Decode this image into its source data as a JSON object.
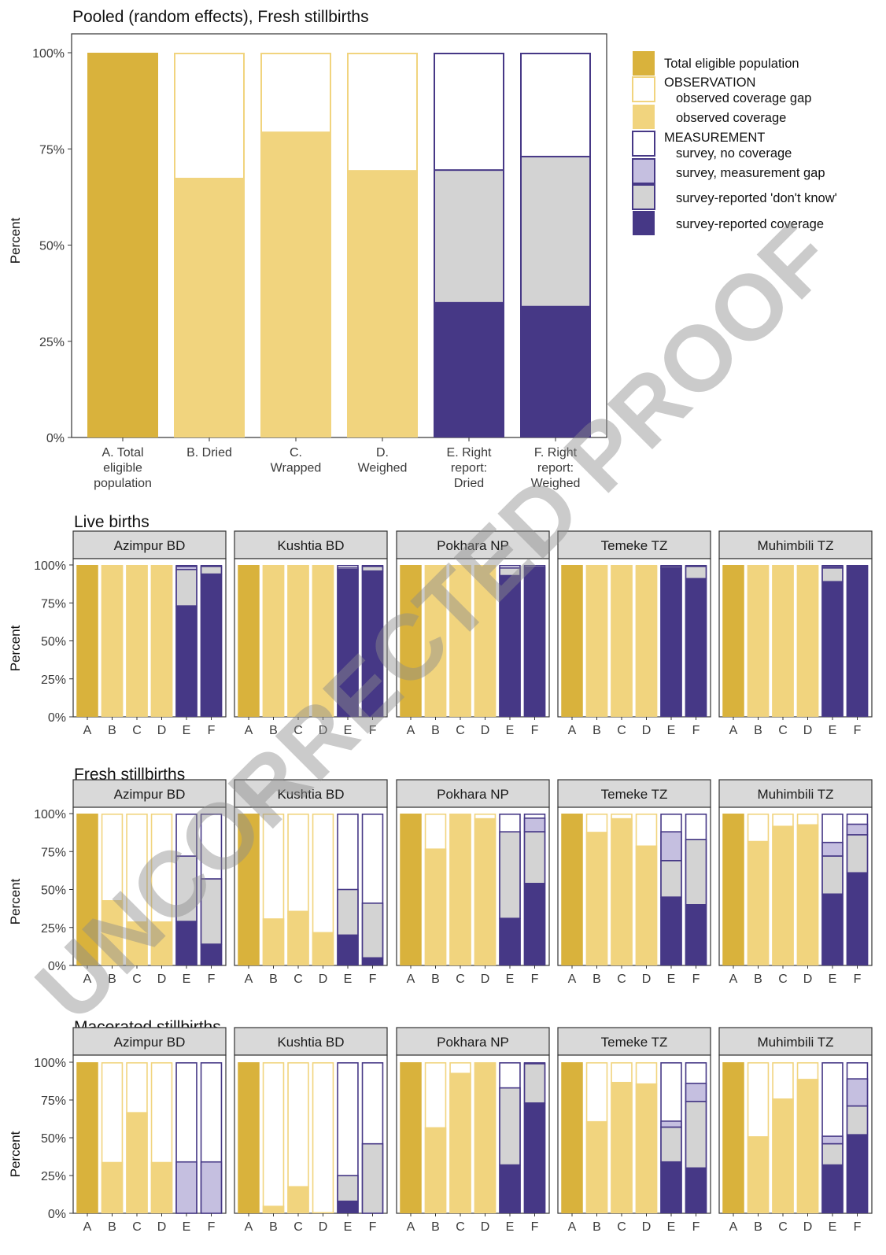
{
  "colors": {
    "total": "#d9b23c",
    "obs_cov": "#f1d47e",
    "obs_gap_stroke": "#f1d47e",
    "meas_cov": "#463886",
    "dont_know": "#d3d3d3",
    "meas_gap": "#c5bfe0",
    "meas_stroke": "#463886",
    "strip_bg": "#d9d9d9"
  },
  "watermark": "UNCORRECTED PROOF",
  "chart_data": [
    {
      "type": "bar",
      "stacked": true,
      "title": "Pooled (random effects), Fresh stillbirths",
      "ylabel": "Percent",
      "ylim": [
        0,
        100
      ],
      "yticks": [
        "0%",
        "25%",
        "50%",
        "75%",
        "100%"
      ],
      "categories": [
        "A. Total eligible population",
        "B. Dried",
        "C. Wrapped",
        "D. Weighed",
        "E. Right report: Dried",
        "F. Right report: Weighed"
      ],
      "category_lines": [
        [
          "A. Total",
          "eligible",
          "population"
        ],
        [
          "B. Dried"
        ],
        [
          "C.",
          "Wrapped"
        ],
        [
          "D.",
          "Weighed"
        ],
        [
          "E. Right",
          "report:",
          "Dried"
        ],
        [
          "F. Right",
          "report:",
          "Weighed"
        ]
      ],
      "bars": [
        {
          "kind": "total",
          "value": 100
        },
        {
          "kind": "obs",
          "coverage": 67.5
        },
        {
          "kind": "obs",
          "coverage": 79.5
        },
        {
          "kind": "obs",
          "coverage": 69.5
        },
        {
          "kind": "meas",
          "coverage": 35,
          "dont_know": 34.5,
          "gap": 0
        },
        {
          "kind": "meas",
          "coverage": 34,
          "dont_know": 39,
          "gap": 0
        }
      ],
      "legend": {
        "position": "right",
        "items": [
          {
            "type": "swatch",
            "fill": "total",
            "label": "Total eligible population"
          },
          {
            "type": "header",
            "label": "OBSERVATION"
          },
          {
            "type": "swatch",
            "fill": "obs_gap",
            "label": "observed coverage gap"
          },
          {
            "type": "swatch",
            "fill": "obs_cov",
            "label": "observed coverage"
          },
          {
            "type": "header",
            "label": "MEASUREMENT"
          },
          {
            "type": "swatch",
            "fill": "meas_nocov",
            "label": "survey, no coverage"
          },
          {
            "type": "swatch",
            "fill": "meas_gap",
            "label": "survey, measurement gap"
          },
          {
            "type": "swatch",
            "fill": "dont_know",
            "label": "survey-reported 'don't know'"
          },
          {
            "type": "swatch",
            "fill": "meas_cov",
            "label": "survey-reported coverage"
          }
        ]
      }
    },
    {
      "type": "bar",
      "stacked": true,
      "title": "Live births",
      "ylabel": "Percent",
      "ylim": [
        0,
        100
      ],
      "yticks": [
        "0%",
        "25%",
        "50%",
        "75%",
        "100%"
      ],
      "categories": [
        "A",
        "B",
        "C",
        "D",
        "E",
        "F"
      ],
      "facets": [
        {
          "site": "Azimpur BD",
          "bars": [
            {
              "kind": "total",
              "value": 100
            },
            {
              "kind": "obs",
              "coverage": 100
            },
            {
              "kind": "obs",
              "coverage": 100
            },
            {
              "kind": "obs",
              "coverage": 100
            },
            {
              "kind": "meas",
              "coverage": 73,
              "dont_know": 24,
              "gap": 2
            },
            {
              "kind": "meas",
              "coverage": 94,
              "dont_know": 5,
              "gap": 0
            }
          ]
        },
        {
          "site": "Kushtia BD",
          "bars": [
            {
              "kind": "total",
              "value": 100
            },
            {
              "kind": "obs",
              "coverage": 100
            },
            {
              "kind": "obs",
              "coverage": 100
            },
            {
              "kind": "obs",
              "coverage": 100
            },
            {
              "kind": "meas",
              "coverage": 97,
              "dont_know": 1,
              "gap": 0
            },
            {
              "kind": "meas",
              "coverage": 96,
              "dont_know": 3,
              "gap": 0
            }
          ]
        },
        {
          "site": "Pokhara NP",
          "bars": [
            {
              "kind": "total",
              "value": 100
            },
            {
              "kind": "obs",
              "coverage": 100
            },
            {
              "kind": "obs",
              "coverage": 100
            },
            {
              "kind": "obs",
              "coverage": 100
            },
            {
              "kind": "meas",
              "coverage": 93,
              "dont_know": 5,
              "gap": 0
            },
            {
              "kind": "meas",
              "coverage": 99,
              "dont_know": 0,
              "gap": 0
            }
          ]
        },
        {
          "site": "Temeke TZ",
          "bars": [
            {
              "kind": "total",
              "value": 100
            },
            {
              "kind": "obs",
              "coverage": 100
            },
            {
              "kind": "obs",
              "coverage": 100
            },
            {
              "kind": "obs",
              "coverage": 99.5
            },
            {
              "kind": "meas",
              "coverage": 98,
              "dont_know": 1,
              "gap": 0
            },
            {
              "kind": "meas",
              "coverage": 91,
              "dont_know": 8,
              "gap": 0
            }
          ]
        },
        {
          "site": "Muhimbili TZ",
          "bars": [
            {
              "kind": "total",
              "value": 100
            },
            {
              "kind": "obs",
              "coverage": 100
            },
            {
              "kind": "obs",
              "coverage": 100
            },
            {
              "kind": "obs",
              "coverage": 100
            },
            {
              "kind": "meas",
              "coverage": 89,
              "dont_know": 9,
              "gap": 1
            },
            {
              "kind": "meas",
              "coverage": 99,
              "dont_know": 0.5,
              "gap": 0
            }
          ]
        }
      ]
    },
    {
      "type": "bar",
      "stacked": true,
      "title": "Fresh stillbirths",
      "ylabel": "Percent",
      "ylim": [
        0,
        100
      ],
      "yticks": [
        "0%",
        "25%",
        "50%",
        "75%",
        "100%"
      ],
      "categories": [
        "A",
        "B",
        "C",
        "D",
        "E",
        "F"
      ],
      "facets": [
        {
          "site": "Azimpur BD",
          "bars": [
            {
              "kind": "total",
              "value": 100
            },
            {
              "kind": "obs",
              "coverage": 43
            },
            {
              "kind": "obs",
              "coverage": 29
            },
            {
              "kind": "obs",
              "coverage": 29
            },
            {
              "kind": "meas",
              "coverage": 29,
              "dont_know": 43,
              "gap": 0
            },
            {
              "kind": "meas",
              "coverage": 14,
              "dont_know": 43,
              "gap": 0
            }
          ]
        },
        {
          "site": "Kushtia BD",
          "bars": [
            {
              "kind": "total",
              "value": 100
            },
            {
              "kind": "obs",
              "coverage": 31
            },
            {
              "kind": "obs",
              "coverage": 36
            },
            {
              "kind": "obs",
              "coverage": 22
            },
            {
              "kind": "meas",
              "coverage": 20,
              "dont_know": 30,
              "gap": 0
            },
            {
              "kind": "meas",
              "coverage": 5,
              "dont_know": 36,
              "gap": 0
            }
          ]
        },
        {
          "site": "Pokhara NP",
          "bars": [
            {
              "kind": "total",
              "value": 100
            },
            {
              "kind": "obs",
              "coverage": 77
            },
            {
              "kind": "obs",
              "coverage": 100
            },
            {
              "kind": "obs",
              "coverage": 97
            },
            {
              "kind": "meas",
              "coverage": 31,
              "dont_know": 57,
              "gap": 0
            },
            {
              "kind": "meas",
              "coverage": 54,
              "dont_know": 34,
              "gap": 9
            }
          ]
        },
        {
          "site": "Temeke TZ",
          "bars": [
            {
              "kind": "total",
              "value": 100
            },
            {
              "kind": "obs",
              "coverage": 88
            },
            {
              "kind": "obs",
              "coverage": 97
            },
            {
              "kind": "obs",
              "coverage": 79
            },
            {
              "kind": "meas",
              "coverage": 45,
              "dont_know": 24,
              "gap": 19
            },
            {
              "kind": "meas",
              "coverage": 40,
              "dont_know": 43,
              "gap": 0
            }
          ]
        },
        {
          "site": "Muhimbili TZ",
          "bars": [
            {
              "kind": "total",
              "value": 100
            },
            {
              "kind": "obs",
              "coverage": 82
            },
            {
              "kind": "obs",
              "coverage": 92
            },
            {
              "kind": "obs",
              "coverage": 93
            },
            {
              "kind": "meas",
              "coverage": 47,
              "dont_know": 25,
              "gap": 9
            },
            {
              "kind": "meas",
              "coverage": 61,
              "dont_know": 25,
              "gap": 7
            }
          ]
        }
      ]
    },
    {
      "type": "bar",
      "stacked": true,
      "title": "Macerated stillbirths",
      "ylabel": "Percent",
      "ylim": [
        0,
        100
      ],
      "yticks": [
        "0%",
        "25%",
        "50%",
        "75%",
        "100%"
      ],
      "categories": [
        "A",
        "B",
        "C",
        "D",
        "E",
        "F"
      ],
      "facets": [
        {
          "site": "Azimpur BD",
          "bars": [
            {
              "kind": "total",
              "value": 100
            },
            {
              "kind": "obs",
              "coverage": 34
            },
            {
              "kind": "obs",
              "coverage": 67
            },
            {
              "kind": "obs",
              "coverage": 34
            },
            {
              "kind": "meas",
              "coverage": 0,
              "dont_know": 0,
              "gap": 34
            },
            {
              "kind": "meas",
              "coverage": 0,
              "dont_know": 0,
              "gap": 34
            }
          ]
        },
        {
          "site": "Kushtia BD",
          "bars": [
            {
              "kind": "total",
              "value": 100
            },
            {
              "kind": "obs",
              "coverage": 5
            },
            {
              "kind": "obs",
              "coverage": 18
            },
            {
              "kind": "obs",
              "coverage": 0
            },
            {
              "kind": "meas",
              "coverage": 8,
              "dont_know": 17,
              "gap": 0
            },
            {
              "kind": "meas",
              "coverage": 0,
              "dont_know": 46,
              "gap": 0
            }
          ]
        },
        {
          "site": "Pokhara NP",
          "bars": [
            {
              "kind": "total",
              "value": 100
            },
            {
              "kind": "obs",
              "coverage": 57
            },
            {
              "kind": "obs",
              "coverage": 93
            },
            {
              "kind": "obs",
              "coverage": 100
            },
            {
              "kind": "meas",
              "coverage": 32,
              "dont_know": 51,
              "gap": 0
            },
            {
              "kind": "meas",
              "coverage": 73,
              "dont_know": 26,
              "gap": 0
            }
          ]
        },
        {
          "site": "Temeke TZ",
          "bars": [
            {
              "kind": "total",
              "value": 100
            },
            {
              "kind": "obs",
              "coverage": 61
            },
            {
              "kind": "obs",
              "coverage": 87
            },
            {
              "kind": "obs",
              "coverage": 86
            },
            {
              "kind": "meas",
              "coverage": 34,
              "dont_know": 23,
              "gap": 4
            },
            {
              "kind": "meas",
              "coverage": 30,
              "dont_know": 44,
              "gap": 12
            }
          ]
        },
        {
          "site": "Muhimbili TZ",
          "bars": [
            {
              "kind": "total",
              "value": 100
            },
            {
              "kind": "obs",
              "coverage": 51
            },
            {
              "kind": "obs",
              "coverage": 76
            },
            {
              "kind": "obs",
              "coverage": 89
            },
            {
              "kind": "meas",
              "coverage": 32,
              "dont_know": 14,
              "gap": 5
            },
            {
              "kind": "meas",
              "coverage": 52,
              "dont_know": 19,
              "gap": 18
            }
          ]
        }
      ]
    }
  ]
}
